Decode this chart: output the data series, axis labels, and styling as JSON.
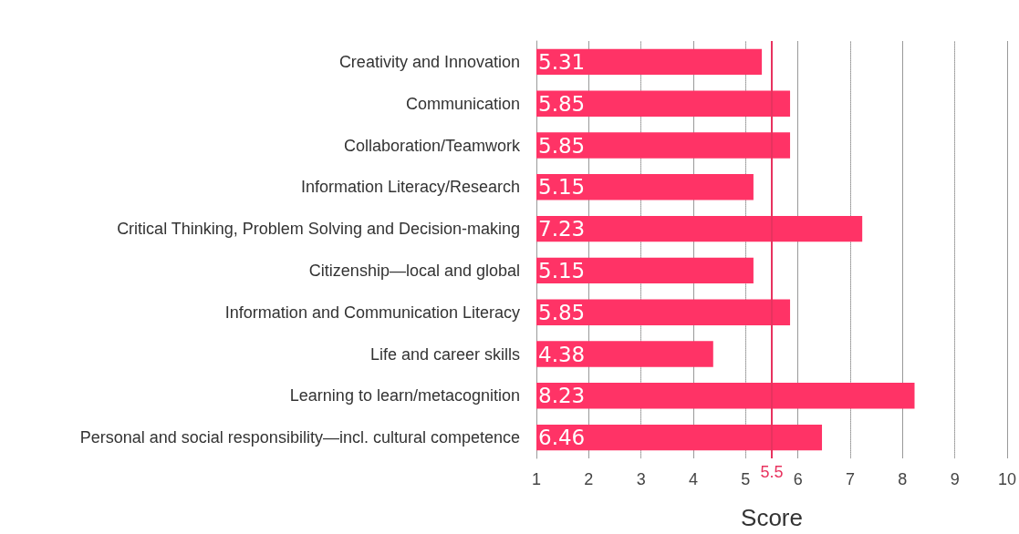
{
  "chart_data": {
    "type": "bar",
    "orientation": "horizontal",
    "xlabel": "Score",
    "categories": [
      "Creativity and Innovation",
      "Communication",
      "Collaboration/Teamwork",
      "Information Literacy/Research",
      "Critical Thinking, Problem Solving and Decision-making",
      "Citizenship—local and global",
      "Information and Communication Literacy",
      "Life and career skills",
      "Learning to learn/metacognition",
      "Personal and social responsibility—incl. cultural competence"
    ],
    "values": [
      5.31,
      5.85,
      5.85,
      5.15,
      7.23,
      5.15,
      5.85,
      4.38,
      8.23,
      6.46
    ],
    "color": "#ff3366",
    "xlim": [
      1,
      10
    ],
    "xticks": [
      1,
      2,
      3,
      4,
      5,
      6,
      7,
      8,
      9,
      10
    ],
    "grid": "x",
    "data_labels": true,
    "ref_lines": [
      {
        "axis": "x",
        "value": 5.5,
        "label": "5.5",
        "color": "#e8335f"
      }
    ]
  }
}
